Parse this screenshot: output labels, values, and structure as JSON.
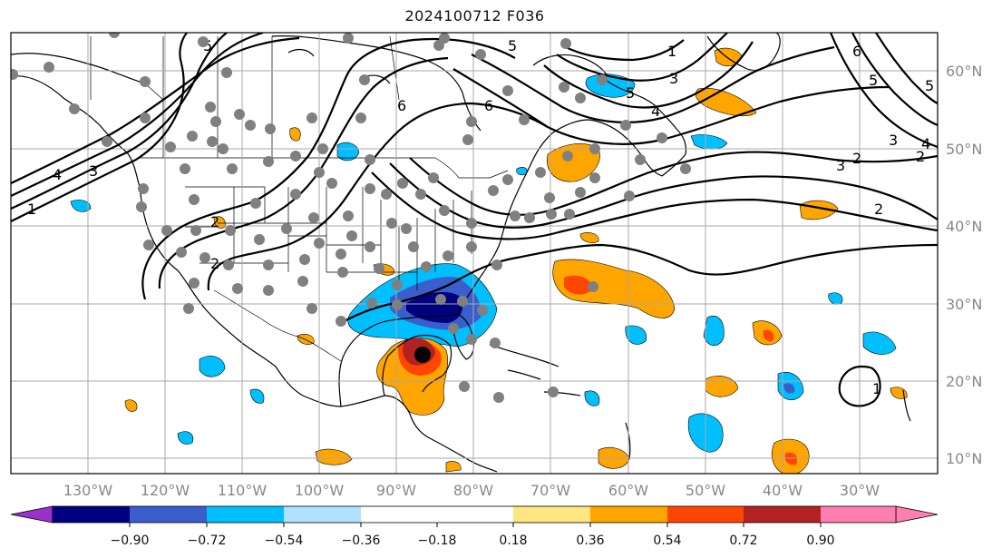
{
  "title": "2024100712 F036",
  "lon_labels": [
    "130°W",
    "120°W",
    "110°W",
    "100°W",
    "90°W",
    "80°W",
    "70°W",
    "60°W",
    "50°W",
    "40°W",
    "30°W"
  ],
  "lat_labels": [
    "60°N",
    "50°N",
    "40°N",
    "30°N",
    "20°N",
    "10°N"
  ],
  "colorbar": {
    "ticks": [
      "−0.90",
      "−0.72",
      "−0.54",
      "−0.36",
      "−0.18",
      "0.18",
      "0.36",
      "0.54",
      "0.72",
      "0.90"
    ],
    "colors": {
      "under": "#9932cc",
      "bins": [
        "#000080",
        "#3a5fcd",
        "#00bfff",
        "#b0e2ff",
        "#ffffff",
        "#ffe680",
        "#ffa500",
        "#ff4500",
        "#b22222"
      ],
      "over": "#ff7fb0"
    }
  },
  "contour_labels": [
    "1",
    "2",
    "3",
    "4",
    "5",
    "6",
    "5",
    "6",
    "5",
    "4",
    "3",
    "2",
    "1",
    "2",
    "3",
    "4",
    "5",
    "6",
    "2",
    "1",
    "2",
    "3",
    "5"
  ],
  "storm_center": {
    "lon": -86.5,
    "lat": 23.0
  }
}
